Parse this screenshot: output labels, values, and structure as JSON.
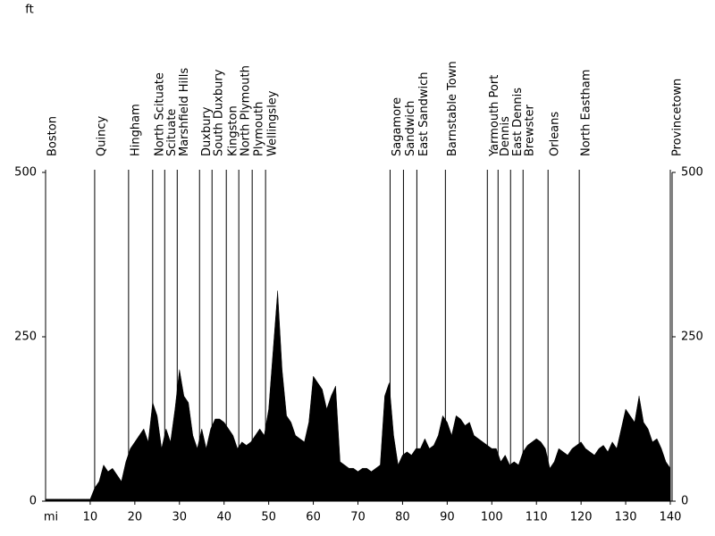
{
  "chart_data": {
    "type": "area",
    "ylabel": "ft",
    "xlabel": "mi",
    "color": "#000000",
    "xlim": [
      0,
      140
    ],
    "ylim": [
      0,
      500
    ],
    "xticks": [
      10,
      20,
      30,
      40,
      50,
      60,
      70,
      80,
      90,
      100,
      110,
      120,
      130,
      140
    ],
    "yticks": [
      0,
      250,
      500
    ],
    "x": [
      0,
      1,
      2,
      3,
      4,
      5,
      6,
      7,
      8,
      9,
      10,
      11,
      12,
      13,
      14,
      15,
      16,
      17,
      18,
      19,
      20,
      21,
      22,
      23,
      24,
      25,
      26,
      27,
      28,
      29,
      30,
      31,
      32,
      33,
      34,
      35,
      36,
      37,
      38,
      39,
      40,
      41,
      42,
      43,
      44,
      45,
      46,
      47,
      48,
      49,
      50,
      51,
      52,
      53,
      54,
      55,
      56,
      57,
      58,
      59,
      60,
      61,
      62,
      63,
      64,
      65,
      66,
      67,
      68,
      69,
      70,
      71,
      72,
      73,
      74,
      75,
      76,
      77,
      78,
      79,
      80,
      81,
      82,
      83,
      84,
      85,
      86,
      87,
      88,
      89,
      90,
      91,
      92,
      93,
      94,
      95,
      96,
      97,
      98,
      99,
      100,
      101,
      102,
      103,
      104,
      105,
      106,
      107,
      108,
      109,
      110,
      111,
      112,
      113,
      114,
      115,
      116,
      117,
      118,
      119,
      120,
      121,
      122,
      123,
      124,
      125,
      126,
      127,
      128,
      129,
      130,
      131,
      132,
      133,
      134,
      135,
      136,
      137,
      138,
      139,
      140
    ],
    "values": [
      3,
      3,
      3,
      3,
      3,
      3,
      3,
      3,
      3,
      3,
      3,
      20,
      30,
      55,
      45,
      50,
      40,
      30,
      60,
      80,
      90,
      100,
      110,
      90,
      150,
      130,
      80,
      110,
      90,
      140,
      200,
      160,
      150,
      100,
      80,
      110,
      80,
      110,
      125,
      125,
      120,
      110,
      100,
      80,
      90,
      85,
      90,
      100,
      110,
      100,
      140,
      230,
      320,
      200,
      130,
      120,
      100,
      95,
      90,
      120,
      190,
      180,
      170,
      140,
      160,
      175,
      60,
      55,
      50,
      50,
      45,
      50,
      50,
      45,
      50,
      55,
      160,
      180,
      100,
      55,
      70,
      75,
      70,
      80,
      80,
      95,
      80,
      85,
      100,
      130,
      120,
      100,
      130,
      125,
      115,
      120,
      100,
      95,
      90,
      85,
      80,
      80,
      60,
      70,
      55,
      60,
      55,
      75,
      85,
      90,
      95,
      90,
      80,
      50,
      60,
      80,
      75,
      70,
      80,
      85,
      90,
      80,
      75,
      70,
      80,
      85,
      75,
      90,
      80,
      110,
      140,
      130,
      120,
      160,
      120,
      110,
      90,
      95,
      80,
      60,
      50
    ],
    "towns": [
      {
        "name": "Boston",
        "mile": 0
      },
      {
        "name": "Quincy",
        "mile": 11
      },
      {
        "name": "Hingham",
        "mile": 18.6
      },
      {
        "name": "North Scituate",
        "mile": 24
      },
      {
        "name": "Scituate",
        "mile": 26.7
      },
      {
        "name": "Marshfield Hills",
        "mile": 29.5
      },
      {
        "name": "Duxbury",
        "mile": 34.5
      },
      {
        "name": "South Duxbury",
        "mile": 37.3
      },
      {
        "name": "Kingston",
        "mile": 40.5
      },
      {
        "name": "North Plymouth",
        "mile": 43.3
      },
      {
        "name": "Plymouth",
        "mile": 46.3
      },
      {
        "name": "Wellingsley",
        "mile": 49.3
      },
      {
        "name": "Sagamore",
        "mile": 77.2
      },
      {
        "name": "Sandwich",
        "mile": 80.2
      },
      {
        "name": "East Sandwich",
        "mile": 83.2
      },
      {
        "name": "Barnstable Town",
        "mile": 89.6
      },
      {
        "name": "Yarmouth Port",
        "mile": 99
      },
      {
        "name": "Dennis",
        "mile": 101.4
      },
      {
        "name": "East Dennis",
        "mile": 104.2
      },
      {
        "name": "Brewster",
        "mile": 107
      },
      {
        "name": "Orleans",
        "mile": 112.6
      },
      {
        "name": "North Eastham",
        "mile": 119.6
      },
      {
        "name": "Provincetown",
        "mile": 140
      }
    ]
  }
}
